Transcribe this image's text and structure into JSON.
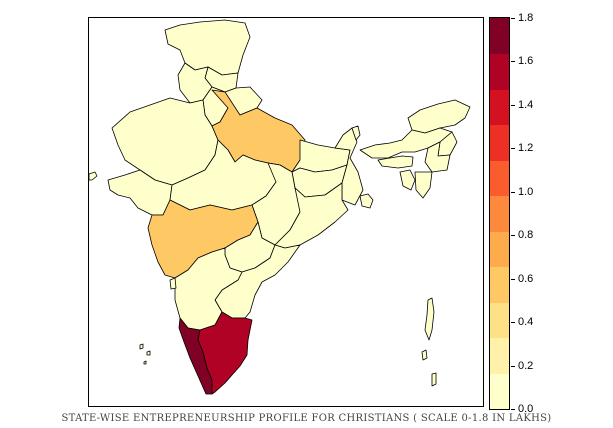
{
  "caption": "STATE-WISE ENTREPRENEURSHIP PROFILE FOR CHRISTIANS ( SCALE 0-1.8 IN LAKHS)",
  "legend": {
    "min": 0.0,
    "max": 1.8,
    "tick_labels": [
      "0.0",
      "0.2",
      "0.4",
      "0.6",
      "0.8",
      "1.0",
      "1.2",
      "1.4",
      "1.6",
      "1.8"
    ],
    "bin_colors": [
      "#ffffcc",
      "#fff1a9",
      "#fee087",
      "#fec965",
      "#feab4b",
      "#fd893c",
      "#fa5c2e",
      "#ec3023",
      "#d31121",
      "#af0225",
      "#800026"
    ]
  },
  "colors": {
    "border": "#000000",
    "background": "#ffffff"
  },
  "chart_data": {
    "type": "choropleth",
    "scale_min": 0.0,
    "scale_max": 1.8,
    "unit": "lakhs",
    "regions": [
      {
        "id": "jammu-kashmir",
        "value": 0.05
      },
      {
        "id": "himachal-pradesh",
        "value": 0.05
      },
      {
        "id": "punjab",
        "value": 0.08
      },
      {
        "id": "uttarakhand",
        "value": 0.05
      },
      {
        "id": "haryana",
        "value": 0.05
      },
      {
        "id": "rajasthan",
        "value": 0.05
      },
      {
        "id": "uttar-pradesh",
        "value": 0.55
      },
      {
        "id": "bihar",
        "value": 0.05
      },
      {
        "id": "gujarat",
        "value": 0.05
      },
      {
        "id": "madhya-pradesh",
        "value": 0.05
      },
      {
        "id": "jharkhand",
        "value": 0.1
      },
      {
        "id": "west-bengal",
        "value": 0.05
      },
      {
        "id": "chhattisgarh",
        "value": 0.05
      },
      {
        "id": "odisha",
        "value": 0.08
      },
      {
        "id": "maharashtra",
        "value": 0.65
      },
      {
        "id": "telangana",
        "value": 0.05
      },
      {
        "id": "andhra-pradesh",
        "value": 0.1
      },
      {
        "id": "karnataka",
        "value": 0.1
      },
      {
        "id": "goa",
        "value": 0.15
      },
      {
        "id": "kerala",
        "value": 1.75
      },
      {
        "id": "tamil-nadu",
        "value": 1.5
      },
      {
        "id": "sikkim",
        "value": 0.05
      },
      {
        "id": "arunachal-pradesh",
        "value": 0.05
      },
      {
        "id": "assam",
        "value": 0.08
      },
      {
        "id": "meghalaya",
        "value": 0.1
      },
      {
        "id": "nagaland",
        "value": 0.08
      },
      {
        "id": "manipur",
        "value": 0.08
      },
      {
        "id": "mizoram",
        "value": 0.05
      },
      {
        "id": "tripura",
        "value": 0.05
      },
      {
        "id": "andaman-nicobar",
        "value": 0.05
      },
      {
        "id": "lakshadweep",
        "value": 0.05
      },
      {
        "id": "diu",
        "value": 0.05
      },
      {
        "id": "sundarbans",
        "value": 0.05
      }
    ]
  }
}
